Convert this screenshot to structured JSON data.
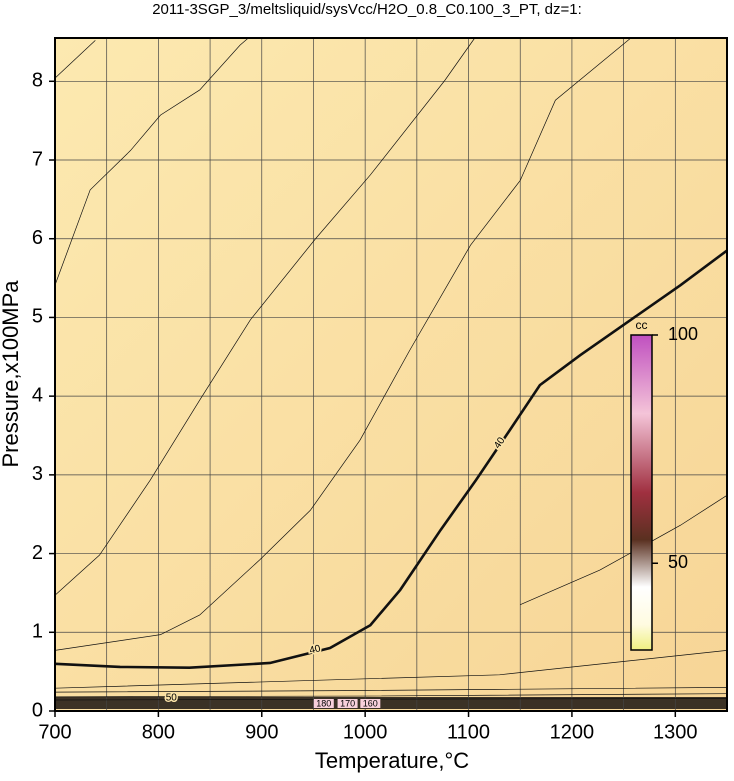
{
  "chart_data": {
    "type": "contour",
    "title": "2011-3SGP_3/meltsliquid/sysVcc/H2O_0.8_C0.100_3_PT, dz=1:",
    "x_label": "Temperature,°C",
    "y_label": "Pressure,x100MPa",
    "xlim": [
      700,
      1350
    ],
    "ylim": [
      0,
      8.55
    ],
    "xticks": [
      700,
      800,
      900,
      1000,
      1100,
      1200,
      1300
    ],
    "yticks": [
      0,
      1,
      2,
      3,
      4,
      5,
      6,
      7,
      8
    ],
    "xgrid": [
      750,
      800,
      850,
      900,
      950,
      1000,
      1050,
      1100,
      1150,
      1200,
      1250,
      1300
    ],
    "grid": true,
    "contours": [
      {
        "level": 40,
        "bold": true,
        "x": [
          700,
          763,
          830,
          908,
          966,
          1005,
          1034,
          1073,
          1107,
          1140,
          1169,
          1208,
          1257,
          1305,
          1350
        ],
        "y": [
          0.6,
          0.56,
          0.55,
          0.61,
          0.8,
          1.09,
          1.54,
          2.3,
          2.93,
          3.57,
          4.14,
          4.52,
          4.97,
          5.41,
          5.85
        ]
      },
      {
        "x": [
          700,
          743,
          792,
          840,
          889,
          952,
          1005,
          1077,
          1106
        ],
        "y": [
          1.47,
          1.98,
          2.93,
          3.95,
          4.97,
          6.0,
          6.81,
          8.01,
          8.55
        ]
      },
      {
        "x": [
          700,
          802,
          840,
          898,
          947,
          995,
          1043,
          1102,
          1150,
          1184,
          1257
        ],
        "y": [
          0.77,
          0.97,
          1.22,
          1.92,
          2.55,
          3.44,
          4.58,
          5.92,
          6.74,
          7.76,
          8.55
        ]
      },
      {
        "x": [
          700,
          734,
          773,
          802,
          840,
          879,
          887
        ],
        "y": [
          5.41,
          6.62,
          7.12,
          7.57,
          7.89,
          8.46,
          8.55
        ]
      },
      {
        "x": [
          700,
          739
        ],
        "y": [
          8.04,
          8.52
        ]
      },
      {
        "x": [
          1150,
          1227,
          1305,
          1350
        ],
        "y": [
          1.35,
          1.79,
          2.36,
          2.74
        ]
      },
      {
        "x": [
          700,
          1130,
          1350
        ],
        "y": [
          0.29,
          0.46,
          0.77
        ]
      },
      {
        "x": [
          700,
          1000,
          1350
        ],
        "y": [
          0.24,
          0.26,
          0.3
        ]
      },
      {
        "x": [
          700,
          1000,
          1350
        ],
        "y": [
          0.18,
          0.19,
          0.22
        ]
      },
      {
        "level": 50,
        "x": [
          700,
          1000,
          1350
        ],
        "y": [
          0.14,
          0.15,
          0.16
        ]
      }
    ],
    "contour_labels": [
      {
        "text": "180",
        "x": 960
      },
      {
        "text": "170",
        "x": 983
      },
      {
        "text": "160",
        "x": 1005
      }
    ],
    "colorbar": {
      "label": "cc",
      "lim": [
        31,
        100
      ],
      "ticks": [
        50,
        100
      ]
    }
  }
}
